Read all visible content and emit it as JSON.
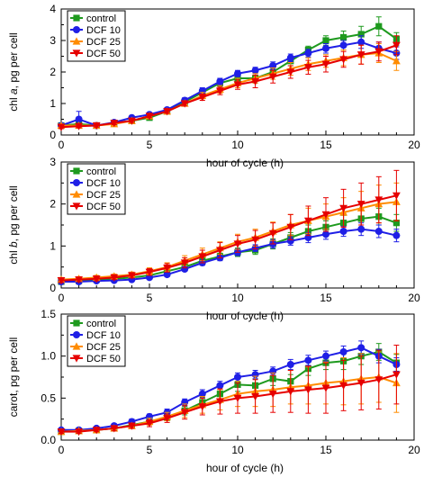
{
  "colors": {
    "control": "#1e9a1e",
    "dcf10": "#1f1fe6",
    "dcf25": "#ff8c00",
    "dcf50": "#e60000"
  },
  "chart_data": [
    {
      "type": "line",
      "ylabel_prefix": "chl ",
      "ylabel_italic": "a",
      "ylabel_suffix": ", pg per cell",
      "xlabel": "hour of cycle (h)",
      "xlim": [
        0,
        20
      ],
      "ylim": [
        0,
        4
      ],
      "xticks": [
        "0",
        "5",
        "10",
        "15",
        "20"
      ],
      "yticks": [
        "0",
        "1",
        "2",
        "3",
        "4"
      ],
      "legend": [
        "control",
        "DCF 10",
        "DCF 25",
        "DCF 50"
      ],
      "x": [
        0,
        1,
        2,
        3,
        4,
        5,
        6,
        7,
        8,
        9,
        10,
        11,
        12,
        13,
        14,
        15,
        16,
        17,
        18,
        19
      ],
      "series": [
        {
          "name": "control",
          "values": [
            0.3,
            0.35,
            0.3,
            0.38,
            0.45,
            0.55,
            0.75,
            1.05,
            1.35,
            1.65,
            1.8,
            1.8,
            2.0,
            2.35,
            2.7,
            3.0,
            3.1,
            3.2,
            3.45,
            3.05
          ],
          "err": [
            0.05,
            0.05,
            0.05,
            0.05,
            0.05,
            0.05,
            0.06,
            0.08,
            0.1,
            0.1,
            0.15,
            0.15,
            0.15,
            0.15,
            0.12,
            0.15,
            0.2,
            0.25,
            0.3,
            0.2
          ]
        },
        {
          "name": "DCF 10",
          "values": [
            0.3,
            0.5,
            0.3,
            0.4,
            0.55,
            0.65,
            0.8,
            1.1,
            1.4,
            1.7,
            1.95,
            2.05,
            2.2,
            2.45,
            2.6,
            2.75,
            2.85,
            2.95,
            2.75,
            2.6
          ],
          "err": [
            0.05,
            0.25,
            0.05,
            0.05,
            0.05,
            0.05,
            0.06,
            0.08,
            0.1,
            0.1,
            0.1,
            0.1,
            0.12,
            0.12,
            0.12,
            0.15,
            0.15,
            0.2,
            0.2,
            0.2
          ]
        },
        {
          "name": "DCF 25",
          "values": [
            0.3,
            0.3,
            0.3,
            0.35,
            0.45,
            0.6,
            0.75,
            1.0,
            1.25,
            1.45,
            1.65,
            1.8,
            1.95,
            2.1,
            2.25,
            2.35,
            2.45,
            2.55,
            2.6,
            2.35
          ],
          "err": [
            0.05,
            0.05,
            0.05,
            0.05,
            0.05,
            0.05,
            0.06,
            0.08,
            0.1,
            0.12,
            0.15,
            0.15,
            0.18,
            0.2,
            0.2,
            0.2,
            0.25,
            0.3,
            0.3,
            0.3
          ]
        },
        {
          "name": "DCF 50",
          "values": [
            0.25,
            0.28,
            0.3,
            0.38,
            0.45,
            0.6,
            0.75,
            1.0,
            1.2,
            1.4,
            1.6,
            1.7,
            1.85,
            2.0,
            2.15,
            2.25,
            2.4,
            2.55,
            2.65,
            2.85
          ],
          "err": [
            0.05,
            0.05,
            0.05,
            0.05,
            0.05,
            0.05,
            0.06,
            0.08,
            0.1,
            0.12,
            0.15,
            0.2,
            0.2,
            0.2,
            0.22,
            0.25,
            0.25,
            0.3,
            0.3,
            0.3
          ]
        }
      ]
    },
    {
      "type": "line",
      "ylabel_prefix": "chl ",
      "ylabel_italic": "b",
      "ylabel_suffix": ", pg per cell",
      "xlabel": "hour of cycle (h)",
      "xlim": [
        0,
        20
      ],
      "ylim": [
        0,
        3
      ],
      "xticks": [
        "0",
        "5",
        "10",
        "15",
        "20"
      ],
      "yticks": [
        "0",
        "1",
        "2",
        "3"
      ],
      "legend": [
        "control",
        "DCF 10",
        "DCF 25",
        "DCF 50"
      ],
      "x": [
        0,
        1,
        2,
        3,
        4,
        5,
        6,
        7,
        8,
        9,
        10,
        11,
        12,
        13,
        14,
        15,
        16,
        17,
        18,
        19
      ],
      "series": [
        {
          "name": "control",
          "values": [
            0.15,
            0.17,
            0.2,
            0.22,
            0.25,
            0.3,
            0.4,
            0.5,
            0.65,
            0.75,
            0.85,
            0.9,
            1.05,
            1.2,
            1.35,
            1.45,
            1.55,
            1.65,
            1.7,
            1.55
          ],
          "err": [
            0.03,
            0.03,
            0.03,
            0.03,
            0.04,
            0.04,
            0.05,
            0.06,
            0.07,
            0.08,
            0.1,
            0.1,
            0.12,
            0.12,
            0.15,
            0.15,
            0.18,
            0.2,
            0.2,
            0.2
          ]
        },
        {
          "name": "DCF 10",
          "values": [
            0.15,
            0.15,
            0.17,
            0.18,
            0.2,
            0.25,
            0.32,
            0.45,
            0.6,
            0.72,
            0.85,
            0.95,
            1.05,
            1.12,
            1.2,
            1.28,
            1.35,
            1.4,
            1.35,
            1.25
          ],
          "err": [
            0.03,
            0.03,
            0.03,
            0.03,
            0.03,
            0.04,
            0.05,
            0.05,
            0.06,
            0.07,
            0.08,
            0.08,
            0.1,
            0.1,
            0.12,
            0.12,
            0.12,
            0.15,
            0.15,
            0.15
          ]
        },
        {
          "name": "DCF 25",
          "values": [
            0.2,
            0.22,
            0.25,
            0.28,
            0.32,
            0.4,
            0.5,
            0.65,
            0.8,
            0.95,
            1.1,
            1.2,
            1.35,
            1.5,
            1.6,
            1.7,
            1.8,
            1.9,
            2.0,
            2.05
          ],
          "err": [
            0.05,
            0.05,
            0.05,
            0.05,
            0.06,
            0.08,
            0.1,
            0.12,
            0.15,
            0.15,
            0.18,
            0.2,
            0.22,
            0.25,
            0.3,
            0.3,
            0.35,
            0.4,
            0.45,
            0.45
          ]
        },
        {
          "name": "DCF 50",
          "values": [
            0.18,
            0.2,
            0.22,
            0.25,
            0.3,
            0.38,
            0.48,
            0.6,
            0.75,
            0.9,
            1.05,
            1.15,
            1.3,
            1.45,
            1.6,
            1.75,
            1.9,
            2.0,
            2.1,
            2.2
          ],
          "err": [
            0.05,
            0.05,
            0.05,
            0.05,
            0.06,
            0.08,
            0.1,
            0.12,
            0.15,
            0.18,
            0.2,
            0.22,
            0.25,
            0.3,
            0.35,
            0.4,
            0.45,
            0.5,
            0.55,
            0.6
          ]
        }
      ]
    },
    {
      "type": "line",
      "ylabel_prefix": "carot, pg per cell",
      "ylabel_italic": "",
      "ylabel_suffix": "",
      "xlabel": "hour of cycle (h)",
      "xlim": [
        0,
        20
      ],
      "ylim": [
        0,
        1.5
      ],
      "xticks": [
        "0",
        "5",
        "10",
        "15",
        "20"
      ],
      "yticks": [
        "0.0",
        "0.5",
        "1.0",
        "1.5"
      ],
      "legend": [
        "control",
        "DCF 10",
        "DCF 25",
        "DCF 50"
      ],
      "x": [
        0,
        1,
        2,
        3,
        4,
        5,
        6,
        7,
        8,
        9,
        10,
        11,
        12,
        13,
        14,
        15,
        16,
        17,
        18,
        19
      ],
      "series": [
        {
          "name": "control",
          "values": [
            0.1,
            0.11,
            0.12,
            0.14,
            0.18,
            0.22,
            0.27,
            0.35,
            0.45,
            0.55,
            0.66,
            0.65,
            0.73,
            0.7,
            0.85,
            0.92,
            0.94,
            1.0,
            1.05,
            0.92
          ],
          "err": [
            0.02,
            0.02,
            0.02,
            0.02,
            0.03,
            0.03,
            0.04,
            0.05,
            0.06,
            0.06,
            0.08,
            0.08,
            0.08,
            0.08,
            0.08,
            0.08,
            0.1,
            0.1,
            0.1,
            0.1
          ]
        },
        {
          "name": "DCF 10",
          "values": [
            0.12,
            0.12,
            0.14,
            0.17,
            0.22,
            0.28,
            0.33,
            0.45,
            0.55,
            0.65,
            0.75,
            0.78,
            0.82,
            0.9,
            0.95,
            1.0,
            1.05,
            1.1,
            1.0,
            0.9
          ],
          "err": [
            0.02,
            0.02,
            0.02,
            0.02,
            0.03,
            0.03,
            0.04,
            0.04,
            0.05,
            0.05,
            0.05,
            0.05,
            0.05,
            0.06,
            0.06,
            0.06,
            0.07,
            0.08,
            0.08,
            0.08
          ]
        },
        {
          "name": "DCF 25",
          "values": [
            0.1,
            0.11,
            0.12,
            0.14,
            0.17,
            0.22,
            0.28,
            0.35,
            0.42,
            0.48,
            0.55,
            0.58,
            0.6,
            0.63,
            0.65,
            0.68,
            0.7,
            0.73,
            0.75,
            0.68
          ],
          "err": [
            0.02,
            0.02,
            0.02,
            0.03,
            0.03,
            0.04,
            0.05,
            0.08,
            0.1,
            0.12,
            0.15,
            0.18,
            0.2,
            0.2,
            0.22,
            0.25,
            0.28,
            0.3,
            0.3,
            0.35
          ]
        },
        {
          "name": "DCF 50",
          "values": [
            0.1,
            0.1,
            0.12,
            0.14,
            0.17,
            0.2,
            0.26,
            0.33,
            0.4,
            0.46,
            0.5,
            0.52,
            0.55,
            0.58,
            0.6,
            0.62,
            0.65,
            0.68,
            0.72,
            0.78
          ],
          "err": [
            0.02,
            0.02,
            0.02,
            0.03,
            0.03,
            0.04,
            0.05,
            0.08,
            0.1,
            0.15,
            0.18,
            0.2,
            0.22,
            0.25,
            0.28,
            0.3,
            0.3,
            0.32,
            0.35,
            0.35
          ]
        }
      ]
    }
  ]
}
